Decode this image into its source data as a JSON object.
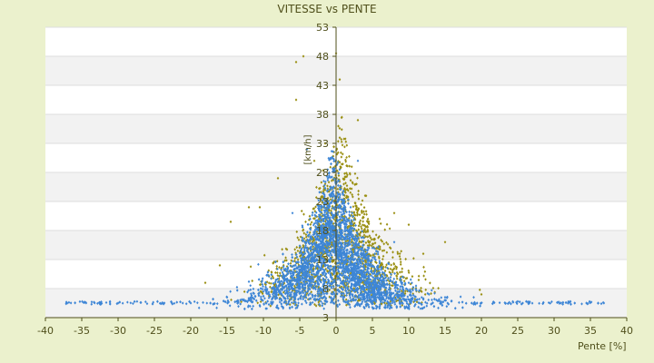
{
  "chart_data": {
    "type": "scatter",
    "title": "VITESSE vs PENTE",
    "xlabel": "Pente [%]",
    "ylabel": "[km/h]",
    "xlim": [
      -40,
      40
    ],
    "ylim": [
      3,
      53
    ],
    "x_ticks": [
      "-40",
      "-35",
      "-30",
      "-25",
      "-20",
      "-15",
      "-10",
      "-5",
      "0",
      "5",
      "10",
      "15",
      "20",
      "25",
      "30",
      "35",
      "40"
    ],
    "y_ticks": [
      "3",
      "8",
      "13",
      "18",
      "23",
      "28",
      "33",
      "38",
      "43",
      "48",
      "53"
    ],
    "grid": "horizontal alternating bands",
    "series": [
      {
        "name": "",
        "color": "#9a8f12",
        "marker": "diamond",
        "description_points": 1500
      },
      {
        "name": "",
        "color": "#3e86d6",
        "marker": "diamond",
        "description_points": 4000
      }
    ],
    "samples": {
      "olive": [
        [
          -14.5,
          19.5
        ],
        [
          -10.5,
          22
        ],
        [
          -5.5,
          47
        ],
        [
          -5.5,
          40.5
        ],
        [
          -4.5,
          48
        ],
        [
          -3,
          30
        ],
        [
          0,
          48.5
        ],
        [
          0.5,
          44
        ],
        [
          3,
          37
        ],
        [
          -1.5,
          33
        ],
        [
          -8,
          27
        ],
        [
          -12,
          22
        ],
        [
          -16,
          12
        ],
        [
          -18,
          9
        ],
        [
          4,
          24
        ],
        [
          6,
          20
        ],
        [
          8,
          21
        ],
        [
          10,
          19
        ],
        [
          12,
          14
        ],
        [
          15,
          16
        ],
        [
          20,
          7
        ]
      ],
      "blue": [
        [
          -37,
          5.5
        ],
        [
          -30,
          5.5
        ],
        [
          -20,
          5.5
        ],
        [
          -15,
          6.5
        ],
        [
          -10,
          7.5
        ],
        [
          -5,
          10
        ],
        [
          -2,
          18
        ],
        [
          0,
          26
        ],
        [
          2,
          22
        ],
        [
          5,
          15
        ],
        [
          10,
          9
        ],
        [
          15,
          6.5
        ],
        [
          25,
          5.8
        ],
        [
          36.5,
          5.4
        ],
        [
          -4,
          32
        ],
        [
          -6,
          21
        ],
        [
          3,
          30
        ],
        [
          8,
          16
        ]
      ]
    }
  }
}
